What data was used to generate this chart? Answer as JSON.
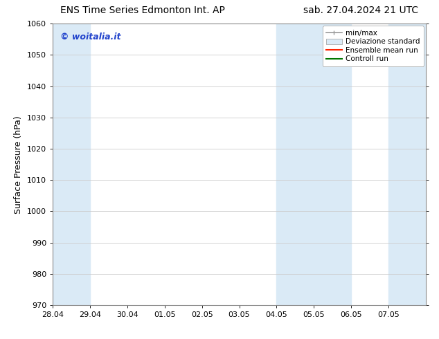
{
  "title_left": "ENS Time Series Edmonton Int. AP",
  "title_right": "sab. 27.04.2024 21 UTC",
  "ylabel": "Surface Pressure (hPa)",
  "ylim": [
    970,
    1060
  ],
  "yticks": [
    970,
    980,
    990,
    1000,
    1010,
    1020,
    1030,
    1040,
    1050,
    1060
  ],
  "xlim": [
    0,
    10.0
  ],
  "xtick_positions": [
    0,
    1,
    2,
    3,
    4,
    5,
    6,
    7,
    8,
    9
  ],
  "xtick_labels": [
    "28.04",
    "29.04",
    "30.04",
    "01.05",
    "02.05",
    "03.05",
    "04.05",
    "05.05",
    "06.05",
    "07.05"
  ],
  "bg_band_color": "#daeaf6",
  "shaded_bands": [
    {
      "x_start": 0.0,
      "x_end": 1.0
    },
    {
      "x_start": 6.0,
      "x_end": 8.0
    },
    {
      "x_start": 9.0,
      "x_end": 10.0
    }
  ],
  "watermark_text": "© woitalia.it",
  "watermark_color": "#2244cc",
  "legend_labels": [
    "min/max",
    "Deviazione standard",
    "Ensemble mean run",
    "Controll run"
  ],
  "legend_minmax_color": "#999999",
  "legend_ens_color": "#ff2200",
  "legend_ctrl_color": "#007700",
  "title_fontsize": 10,
  "ylabel_fontsize": 9,
  "tick_fontsize": 8,
  "watermark_fontsize": 9,
  "legend_fontsize": 7.5,
  "fig_bg": "#ffffff",
  "axes_bg": "#ffffff",
  "grid_color": "#cccccc",
  "grid_linewidth": 0.6,
  "spine_color": "#888888",
  "spine_linewidth": 0.8
}
